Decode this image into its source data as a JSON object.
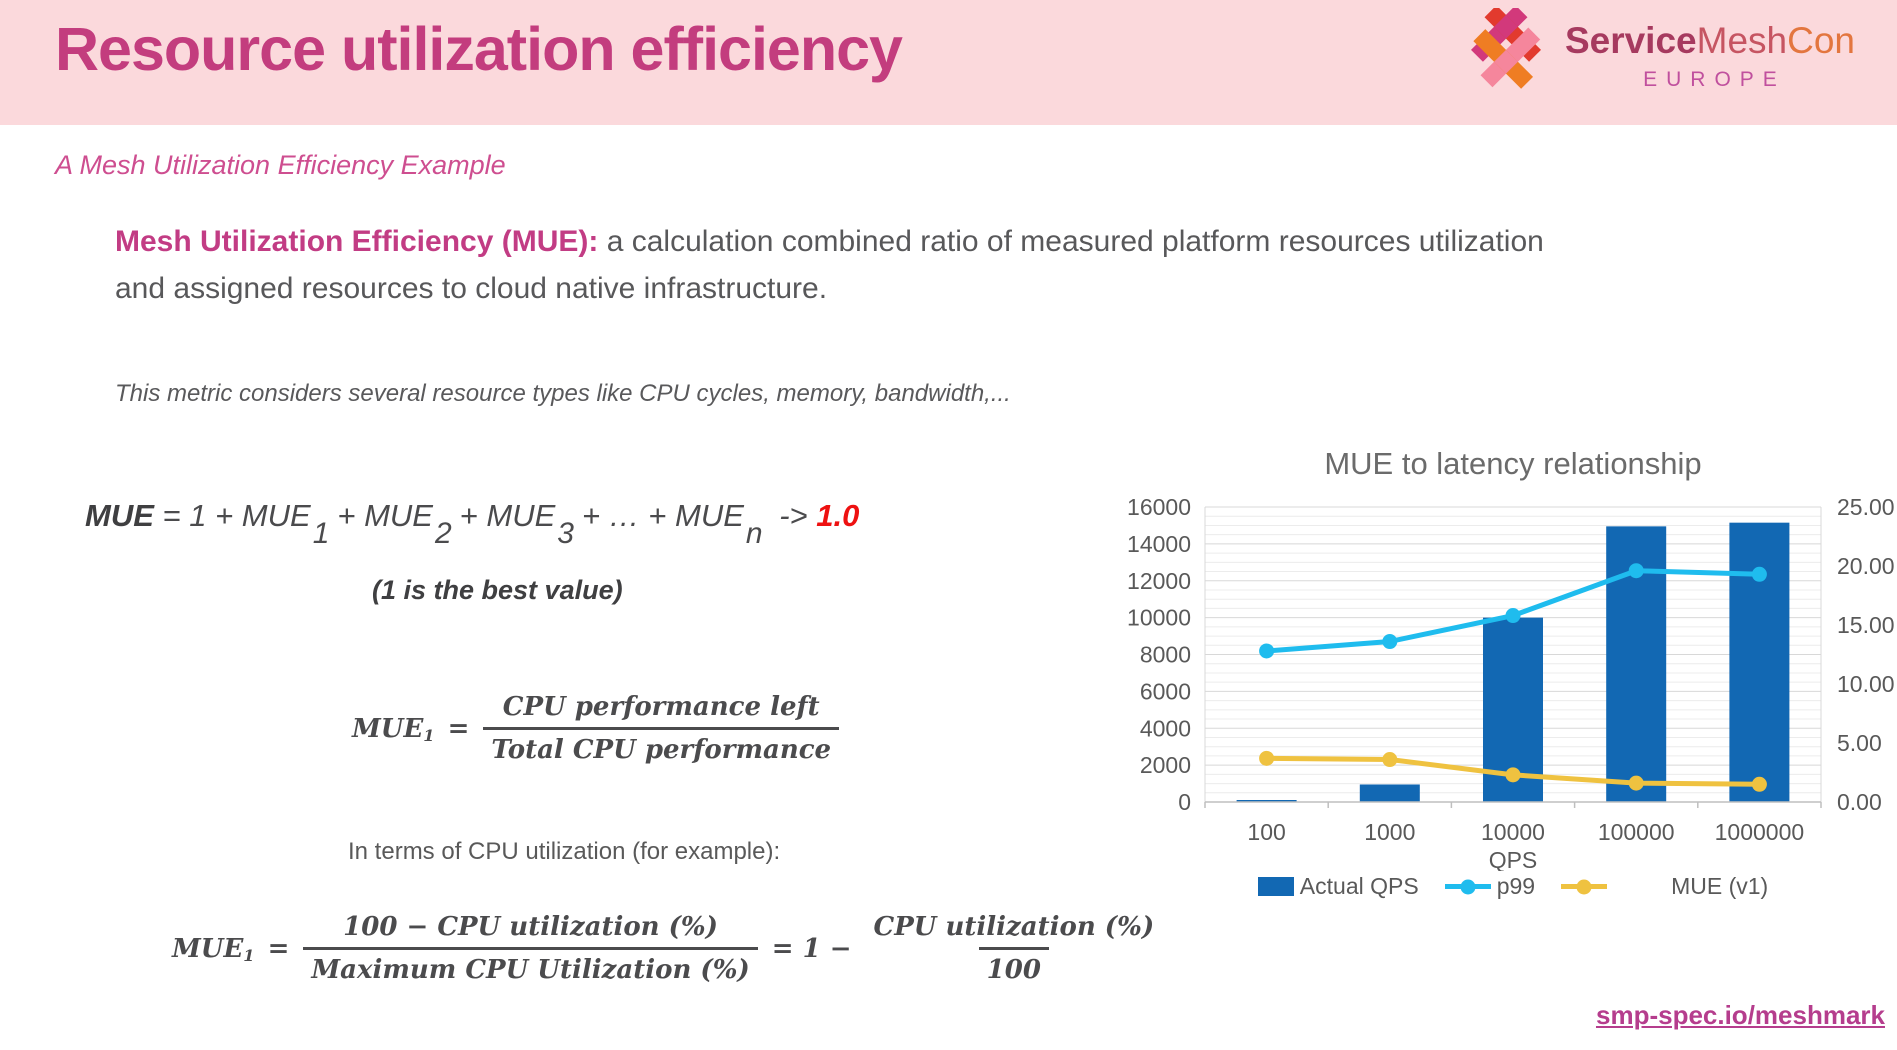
{
  "header": {
    "title": "Resource utilization efficiency",
    "logo": {
      "service": "Service",
      "mesh": "Mesh",
      "con": "Con",
      "region": "EUROPE"
    }
  },
  "subtitle": "A Mesh Utilization Efficiency Example",
  "definition": {
    "lead": "Mesh Utilization Efficiency (MUE):",
    "body": " a calculation combined ratio of measured platform resources utilization and assigned resources to cloud native infrastructure."
  },
  "note": "This metric considers several resource types like CPU cycles, memory, bandwidth,...",
  "mue_formula": {
    "lhs": "MUE",
    "eq": " = 1 + MUE",
    "sub1": "1",
    "t2": "+ MUE",
    "sub2": "2",
    "t3": "+ MUE",
    "sub3": "3",
    "t4": "+ … + MUE",
    "subn": "n",
    "arrow": "-> ",
    "target": "1.0",
    "caption": "(1 is the best value)"
  },
  "mue1_formula": {
    "lhs": "MUE",
    "sub": "1",
    "eq": "=",
    "numerator": "CPU performance left",
    "denominator": "Total CPU performance"
  },
  "cpu_note": "In terms of CPU utilization (for example):",
  "cpu_formula": {
    "lhs": "MUE",
    "sub": "1",
    "eq": "=",
    "num1": "100 − CPU utilization (%)",
    "den1": "Maximum CPU Utilization (%)",
    "mid": "= 1 −",
    "num2": "CPU utilization (%)",
    "den2": "100"
  },
  "footer_link": "smp-spec.io/meshmark",
  "colors": {
    "header_pink": "#FBD9DC",
    "title_magenta": "#C33D7E",
    "formula_red": "#EE1111",
    "link_magenta": "#B53D8D"
  },
  "chart_data": {
    "type": "combo",
    "title": "MUE to latency relationship",
    "categories": [
      "100",
      "1000",
      "10000",
      "100000",
      "1000000"
    ],
    "xlabel": "QPS",
    "grid": true,
    "legend_position": "bottom",
    "axis_left": {
      "min": 0,
      "max": 16000,
      "step": 2000,
      "minor_step": 500
    },
    "axis_right": {
      "min": 0,
      "max": 25,
      "step": 5,
      "decimals": 2
    },
    "series": [
      {
        "name": "Actual QPS",
        "type": "bar",
        "axis": "left",
        "color": "#1268B3",
        "values": [
          100,
          950,
          10000,
          14950,
          15150
        ]
      },
      {
        "name": "p99",
        "type": "line",
        "axis": "right",
        "color": "#1FBCEE",
        "values": [
          12.8,
          13.6,
          15.8,
          19.6,
          19.3
        ]
      },
      {
        "name": "MUE (v1)",
        "type": "line",
        "axis": "right",
        "color": "#EFC240",
        "values": [
          3.7,
          3.6,
          2.3,
          1.6,
          1.5
        ]
      }
    ]
  }
}
